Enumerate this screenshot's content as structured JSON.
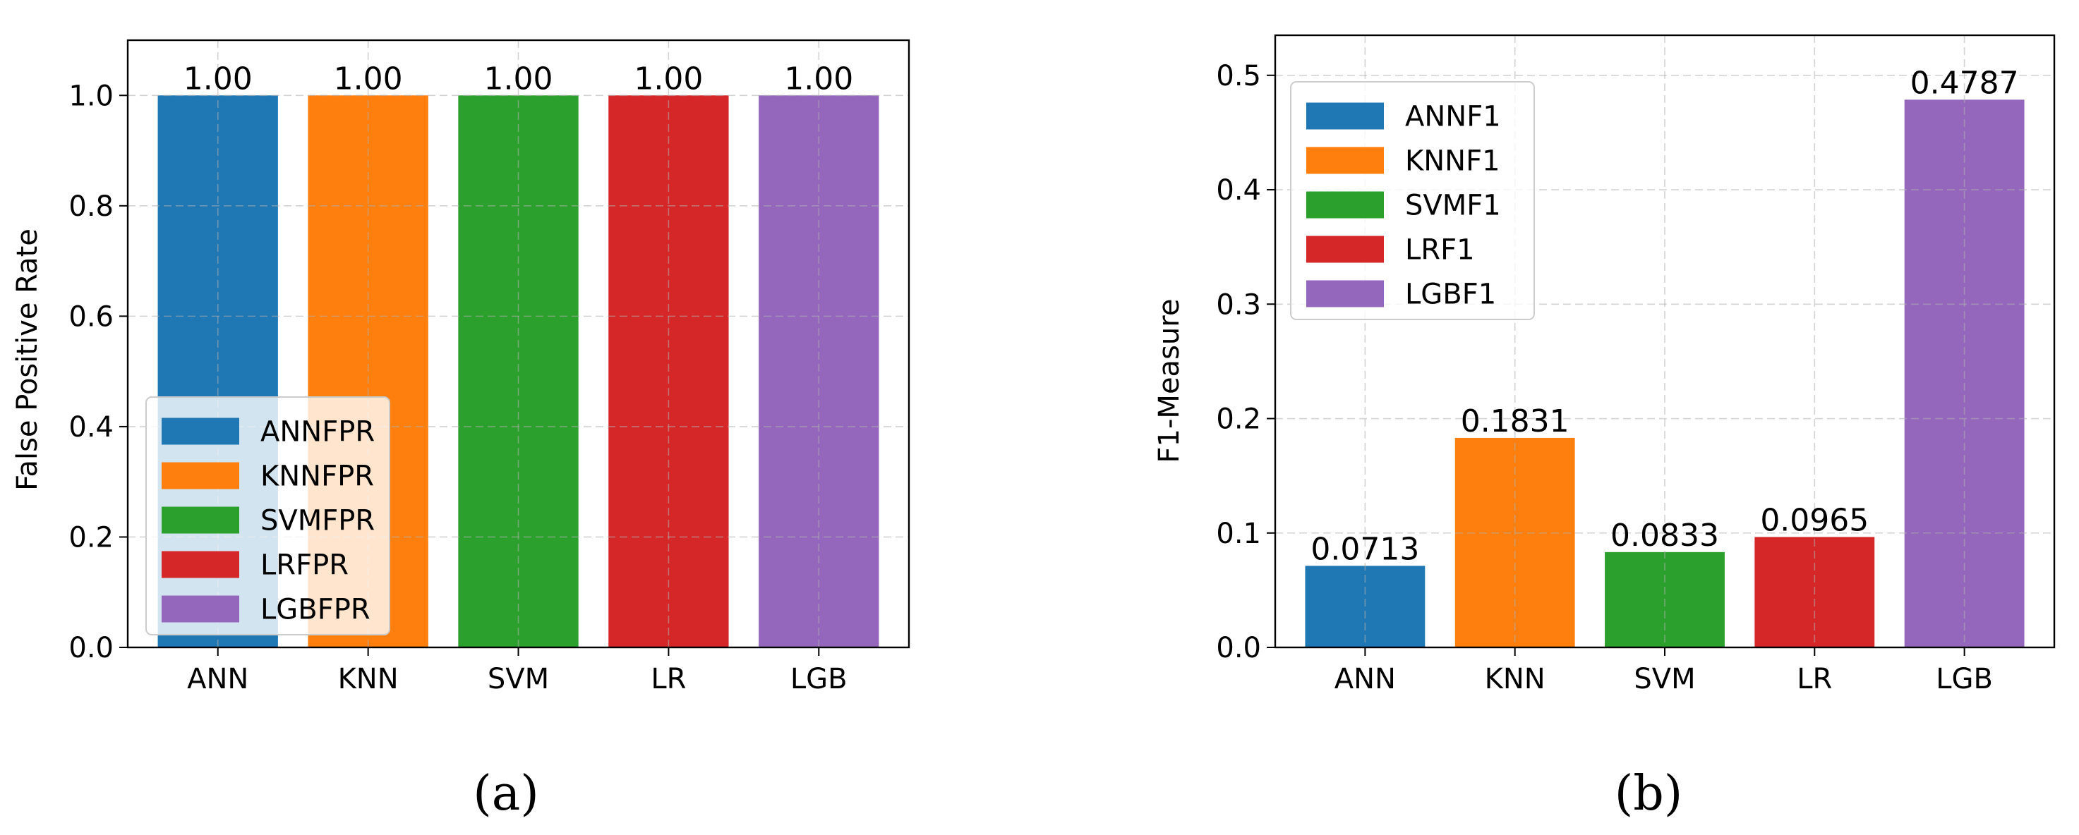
{
  "chart_data": [
    {
      "type": "bar",
      "panel_label": "(a)",
      "title": "",
      "xlabel": "",
      "ylabel": "False Positive Rate",
      "categories": [
        "ANN",
        "KNN",
        "SVM",
        "LR",
        "LGB"
      ],
      "values": [
        1.0,
        1.0,
        1.0,
        1.0,
        1.0
      ],
      "value_labels": [
        "1.00",
        "1.00",
        "1.00",
        "1.00",
        "1.00"
      ],
      "colors": [
        "#1f77b4",
        "#ff7f0e",
        "#2ca02c",
        "#d62728",
        "#9467bd"
      ],
      "legend": [
        "ANNFPR",
        "KNNFPR",
        "SVMFPR",
        "LRFPR",
        "LGBFPR"
      ],
      "legend_position": "lower-left",
      "ylim": [
        0,
        1.1
      ],
      "yticks": [
        0.0,
        0.2,
        0.4,
        0.6,
        0.8,
        1.0
      ],
      "ytick_labels": [
        "0.0",
        "0.2",
        "0.4",
        "0.6",
        "0.8",
        "1.0"
      ],
      "grid": true
    },
    {
      "type": "bar",
      "panel_label": "(b)",
      "title": "",
      "xlabel": "",
      "ylabel": "F1-Measure",
      "categories": [
        "ANN",
        "KNN",
        "SVM",
        "LR",
        "LGB"
      ],
      "values": [
        0.0713,
        0.1831,
        0.0833,
        0.0965,
        0.4787
      ],
      "value_labels": [
        "0.0713",
        "0.1831",
        "0.0833",
        "0.0965",
        "0.4787"
      ],
      "colors": [
        "#1f77b4",
        "#ff7f0e",
        "#2ca02c",
        "#d62728",
        "#9467bd"
      ],
      "legend": [
        "ANNF1",
        "KNNF1",
        "SVMF1",
        "LRF1",
        "LGBF1"
      ],
      "legend_position": "upper-left",
      "ylim": [
        0,
        0.535
      ],
      "yticks": [
        0.0,
        0.1,
        0.2,
        0.3,
        0.4,
        0.5
      ],
      "ytick_labels": [
        "0.0",
        "0.1",
        "0.2",
        "0.3",
        "0.4",
        "0.5"
      ],
      "grid": true
    }
  ]
}
